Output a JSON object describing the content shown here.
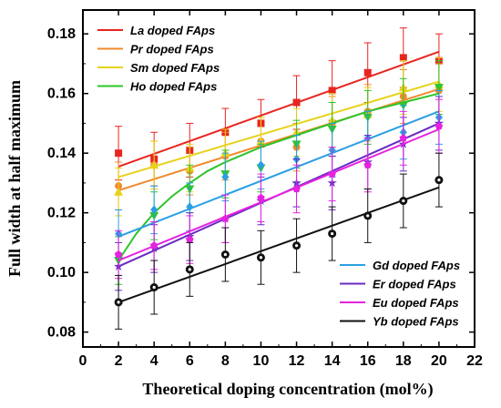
{
  "chart_data": {
    "type": "scatter",
    "xlabel": "Theoretical doping concentration (mol%)",
    "ylabel": "Full width at half maximum",
    "xlim": [
      0,
      22
    ],
    "ylim": [
      0.075,
      0.188
    ],
    "xticks": [
      0,
      2,
      4,
      6,
      8,
      10,
      12,
      14,
      16,
      18,
      20,
      22
    ],
    "yticks": [
      0.08,
      0.1,
      0.12,
      0.14,
      0.16,
      0.18
    ],
    "ytick_labels": [
      "0.08",
      "0.10",
      "0.12",
      "0.14",
      "0.16",
      "0.18"
    ],
    "grid": false,
    "legend_top": {
      "placement": "top-left",
      "entries": [
        "La doped FAps",
        "Pr doped FAps",
        "Sm doped FAps",
        "Ho doped FAps"
      ]
    },
    "legend_bottom": {
      "placement": "bottom-right",
      "entries": [
        "Gd doped FAps",
        "Er doped FAps",
        "Eu doped FAps",
        "Yb doped FAps"
      ]
    },
    "x": [
      2,
      4,
      6,
      8,
      10,
      12,
      14,
      16,
      18,
      20
    ],
    "series": [
      {
        "name": "La doped FAps",
        "color": "#e8251f",
        "marker": "square",
        "fit": "linear",
        "values": [
          0.14,
          0.138,
          0.141,
          0.147,
          0.15,
          0.157,
          0.161,
          0.167,
          0.172,
          0.171
        ],
        "errors": [
          0.009,
          0.009,
          0.009,
          0.008,
          0.008,
          0.009,
          0.01,
          0.01,
          0.01,
          0.009
        ],
        "fit_line": [
          [
            2,
            0.1355
          ],
          [
            20,
            0.174
          ]
        ]
      },
      {
        "name": "Pr doped FAps",
        "color": "#f08a2c",
        "marker": "circle",
        "fit": "linear",
        "values": [
          0.129,
          0.136,
          0.134,
          0.139,
          0.144,
          0.142,
          0.15,
          0.154,
          0.159,
          0.161
        ],
        "errors": [
          0.008,
          0.008,
          0.008,
          0.008,
          0.008,
          0.008,
          0.009,
          0.009,
          0.009,
          0.009
        ],
        "fit_line": [
          [
            2,
            0.1275
          ],
          [
            20,
            0.1615
          ]
        ]
      },
      {
        "name": "Sm doped FAps",
        "color": "#e8d21a",
        "marker": "triangle-up",
        "fit": "linear",
        "values": [
          0.127,
          0.136,
          0.135,
          0.14,
          0.144,
          0.147,
          0.151,
          0.153,
          0.162,
          0.163
        ],
        "errors": [
          0.008,
          0.008,
          0.008,
          0.008,
          0.008,
          0.008,
          0.009,
          0.009,
          0.009,
          0.009
        ],
        "fit_line": [
          [
            2,
            0.132
          ],
          [
            20,
            0.164
          ]
        ]
      },
      {
        "name": "Ho doped FAps",
        "color": "#2ec42a",
        "marker": "triangle-down",
        "fit": "curve",
        "values": [
          0.104,
          0.119,
          0.128,
          0.133,
          0.135,
          0.143,
          0.148,
          0.152,
          0.156,
          0.162
        ],
        "errors": [
          0.008,
          0.008,
          0.008,
          0.008,
          0.008,
          0.008,
          0.009,
          0.009,
          0.009,
          0.009
        ],
        "fit_line": [
          [
            2,
            0.104
          ],
          [
            3,
            0.113
          ],
          [
            4,
            0.12
          ],
          [
            5,
            0.1255
          ],
          [
            6,
            0.13
          ],
          [
            7,
            0.134
          ],
          [
            8,
            0.137
          ],
          [
            10,
            0.142
          ],
          [
            12,
            0.146
          ],
          [
            14,
            0.15
          ],
          [
            16,
            0.154
          ],
          [
            18,
            0.157
          ],
          [
            20,
            0.16
          ]
        ]
      },
      {
        "name": "Gd doped FAps",
        "color": "#2a9fe3",
        "marker": "diamond",
        "fit": "linear",
        "values": [
          0.113,
          0.121,
          0.122,
          0.132,
          0.136,
          0.138,
          0.141,
          0.145,
          0.147,
          0.152
        ],
        "errors": [
          0.008,
          0.008,
          0.008,
          0.008,
          0.008,
          0.008,
          0.009,
          0.009,
          0.009,
          0.009
        ],
        "fit_line": [
          [
            2,
            0.112
          ],
          [
            20,
            0.154
          ]
        ]
      },
      {
        "name": "Er doped FAps",
        "color": "#6a2bc4",
        "marker": "star",
        "fit": "linear",
        "values": [
          0.102,
          0.108,
          0.112,
          0.118,
          0.124,
          0.13,
          0.13,
          0.137,
          0.143,
          0.15
        ],
        "errors": [
          0.008,
          0.008,
          0.008,
          0.008,
          0.008,
          0.008,
          0.009,
          0.009,
          0.009,
          0.009
        ],
        "fit_line": [
          [
            2,
            0.102
          ],
          [
            20,
            0.15
          ]
        ]
      },
      {
        "name": "Eu doped FAps",
        "color": "#e622e0",
        "marker": "pentagon",
        "fit": "linear",
        "values": [
          0.106,
          0.109,
          0.111,
          0.118,
          0.125,
          0.128,
          0.133,
          0.136,
          0.145,
          0.149
        ],
        "errors": [
          0.008,
          0.008,
          0.008,
          0.008,
          0.008,
          0.008,
          0.009,
          0.009,
          0.009,
          0.009
        ],
        "fit_line": [
          [
            2,
            0.104
          ],
          [
            20,
            0.148
          ]
        ]
      },
      {
        "name": "Yb doped FAps",
        "color": "#111111",
        "marker": "circle-open",
        "fit": "linear",
        "values": [
          0.09,
          0.095,
          0.101,
          0.106,
          0.105,
          0.109,
          0.113,
          0.119,
          0.124,
          0.131
        ],
        "errors": [
          0.009,
          0.009,
          0.009,
          0.009,
          0.009,
          0.009,
          0.009,
          0.009,
          0.009,
          0.009
        ],
        "fit_line": [
          [
            2,
            0.09
          ],
          [
            20,
            0.1285
          ]
        ]
      }
    ]
  }
}
